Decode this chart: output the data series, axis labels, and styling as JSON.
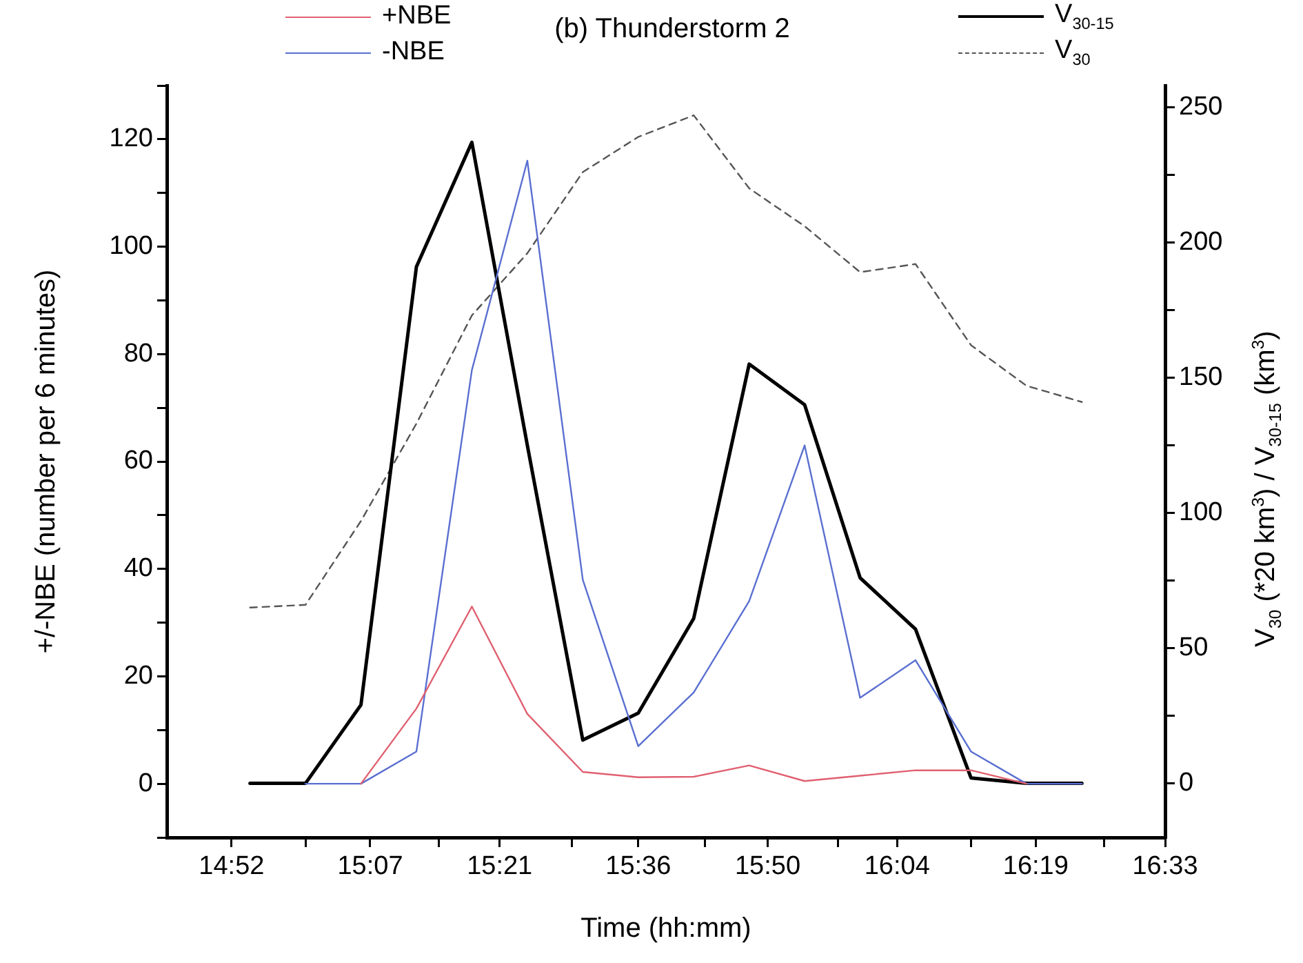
{
  "chart_data": {
    "type": "line",
    "title": "(b) Thunderstorm 2",
    "xlabel": "Time (hh:mm)",
    "ylabel": "+/-NBE (number per 6 minutes)",
    "y2label": "V$_{30}$ (*20 km$^{3}$) / V$_{30-15}$ (km$^{3}$)",
    "x": [
      14.9,
      15.0,
      15.1,
      15.2,
      15.3,
      15.4,
      15.5,
      15.6,
      15.7,
      15.8,
      15.9,
      16.0,
      16.1,
      16.2,
      16.3,
      16.4
    ],
    "series": [
      {
        "name": "+NBE",
        "color": "#e06070",
        "values": [
          null,
          null,
          0,
          14,
          33,
          13,
          2.2,
          1.2,
          1.3,
          3.4,
          0.5,
          1.5,
          2.5,
          2.5,
          0,
          null
        ]
      },
      {
        "name": "-NBE",
        "color": "#5a6fd0",
        "values": [
          null,
          0,
          0,
          6,
          77,
          116,
          38,
          7,
          17,
          34,
          63,
          16,
          23,
          6,
          0,
          0
        ]
      },
      {
        "name": "V$_{30-15}$",
        "color": "#000000",
        "axis": "y2",
        "values": [
          0,
          0,
          29,
          191,
          237,
          125,
          16,
          26,
          61,
          155,
          140,
          76,
          57,
          2,
          0,
          0
        ]
      },
      {
        "name": "V$_{30}$",
        "color": "#555555",
        "axis": "y2",
        "line_style": "dashed",
        "values": [
          65,
          66,
          97,
          133,
          173,
          196,
          226,
          239,
          247,
          220,
          206,
          189,
          192,
          162,
          147,
          141
        ]
      }
    ],
    "xlim": [
      14.75,
      16.55
    ],
    "xticks": [
      {
        "value": 14.8667,
        "label": "14:52"
      },
      {
        "value": 15.0,
        "label": null
      },
      {
        "value": 15.1167,
        "label": "15:07"
      },
      {
        "value": 15.24,
        "label": null
      },
      {
        "value": 15.35,
        "label": "15:21"
      },
      {
        "value": 15.48,
        "label": null
      },
      {
        "value": 15.6,
        "label": "15:36"
      },
      {
        "value": 15.72,
        "label": null
      },
      {
        "value": 15.8333,
        "label": "15:50"
      },
      {
        "value": 15.96,
        "label": null
      },
      {
        "value": 16.0667,
        "label": "16:04"
      },
      {
        "value": 16.2,
        "label": null
      },
      {
        "value": 16.3167,
        "label": "16:19"
      },
      {
        "value": 16.44,
        "label": null
      },
      {
        "value": 16.55,
        "label": "16:33"
      }
    ],
    "ylim": [
      -10,
      130
    ],
    "yticks": [
      {
        "value": -10,
        "label": null
      },
      0,
      {
        "value": 10,
        "label": null
      },
      20,
      {
        "value": 30,
        "label": null
      },
      40,
      {
        "value": 50,
        "label": null
      },
      60,
      {
        "value": 70,
        "label": null
      },
      80,
      {
        "value": 90,
        "label": null
      },
      100,
      {
        "value": 110,
        "label": null
      },
      120,
      {
        "value": 130,
        "label": null
      }
    ],
    "y2lim": [
      -20,
      258
    ],
    "y2ticks": [
      0,
      {
        "value": 25,
        "label": null
      },
      50,
      {
        "value": 75,
        "label": null
      },
      100,
      {
        "value": 125,
        "label": null
      },
      150,
      {
        "value": 175,
        "label": null
      },
      200,
      {
        "value": 225,
        "label": null
      },
      250
    ],
    "legend": "top",
    "marker": "none",
    "line_style": "solid"
  }
}
